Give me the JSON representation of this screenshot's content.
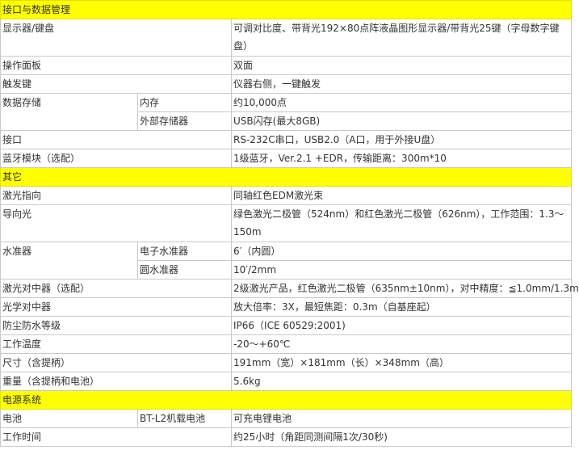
{
  "sections": [
    {
      "title": "接口与数据管理",
      "rows": [
        {
          "label": "显示器/键盘",
          "value": "可调对比度、带背光192×80点阵液晶图形显示器/带背光25键（字母数字键盘）"
        },
        {
          "label": "操作面板",
          "value": "双面"
        },
        {
          "label": "触发键",
          "value": "仪器右侧，一键触发"
        },
        {
          "label": "数据存储",
          "sub": "内存",
          "value": "约10,000点"
        },
        {
          "sub": "外部存储器",
          "value": "USB闪存(最大8GB)"
        },
        {
          "label": "接口",
          "value": "RS-232C串口，USB2.0（A口，用于外接U盘）"
        },
        {
          "label": "蓝牙模块（选配）",
          "value": "1级蓝牙，Ver.2.1 +EDR，传输距离：300m*10"
        }
      ]
    },
    {
      "title": "其它",
      "rows": [
        {
          "label": "激光指向",
          "value": "同轴红色EDM激光束"
        },
        {
          "label": "导向光",
          "value": "绿色激光二极管（524nm）和红色激光二极管（626nm），工作范围：1.3～150m"
        },
        {
          "label": "水准器",
          "sub": "电子水准器",
          "value": "6′（内圆）"
        },
        {
          "sub": "圆水准器",
          "value": "10′/2mm"
        },
        {
          "label": "激光对中器（选配）",
          "value": "2级激光产品，红色激光二极管（635nm±10nm），对中精度：≦1.0mm/1.3m"
        },
        {
          "label": "光学对中器",
          "value": "放大倍率：3X，最短焦距：0.3m（自基座起）"
        },
        {
          "label": "防尘防水等级",
          "value": "IP66（ICE 60529:2001)"
        },
        {
          "label": "工作温度",
          "value": "-20～+60℃"
        },
        {
          "label": "尺寸（含提柄）",
          "value": "191mm（宽）×181mm（长）×348mm（高）"
        },
        {
          "label": "重量（含提柄和电池）",
          "value": "5.6kg"
        }
      ]
    },
    {
      "title": "电源系统",
      "rows": [
        {
          "label": "电池",
          "sub": "BT-L2机载电池",
          "value": "可充电锂电池"
        },
        {
          "label": "工作时间",
          "value": "约25小时（角距同测间隔1次/30秒)"
        }
      ]
    }
  ]
}
